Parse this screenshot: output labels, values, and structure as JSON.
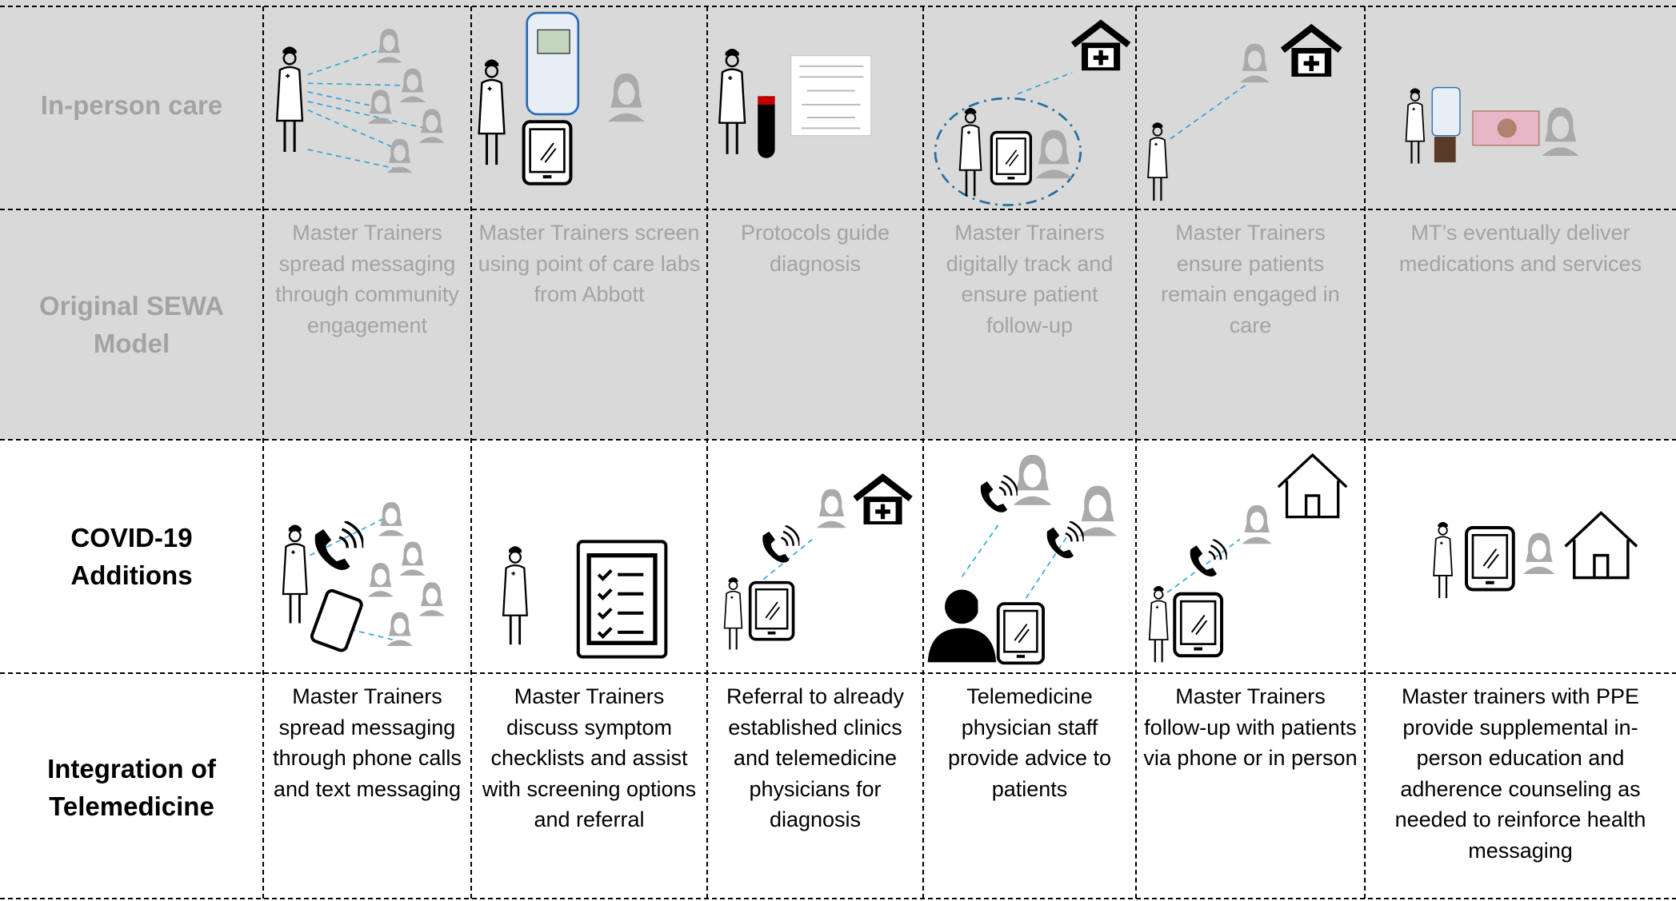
{
  "rows": [
    {
      "label": "In-person care"
    },
    {
      "label": "Original SEWA Model",
      "cells": [
        "Master Trainers spread messaging through community engagement",
        "Master Trainers screen using point of care labs from Abbott",
        "Protocols guide diagnosis",
        "Master Trainers digitally track and ensure patient follow-up",
        "Master Trainers ensure patients remain engaged in care",
        "MT’s eventually deliver medications and services"
      ]
    },
    {
      "label": "COVID-19 Additions"
    },
    {
      "label": "Integration of Telemedicine",
      "cells": [
        "Master Trainers spread messaging through phone calls and text messaging",
        "Master Trainers discuss symptom checklists and assist with screening options and referral",
        "Referral to already established clinics and telemedicine physicians for diagnosis",
        "Telemedicine physician staff provide advice to patients",
        "Master Trainers follow-up with patients via phone or in person",
        "Master trainers with PPE provide supplemental in-person education and adherence counseling as needed to reinforce health messaging"
      ]
    }
  ]
}
